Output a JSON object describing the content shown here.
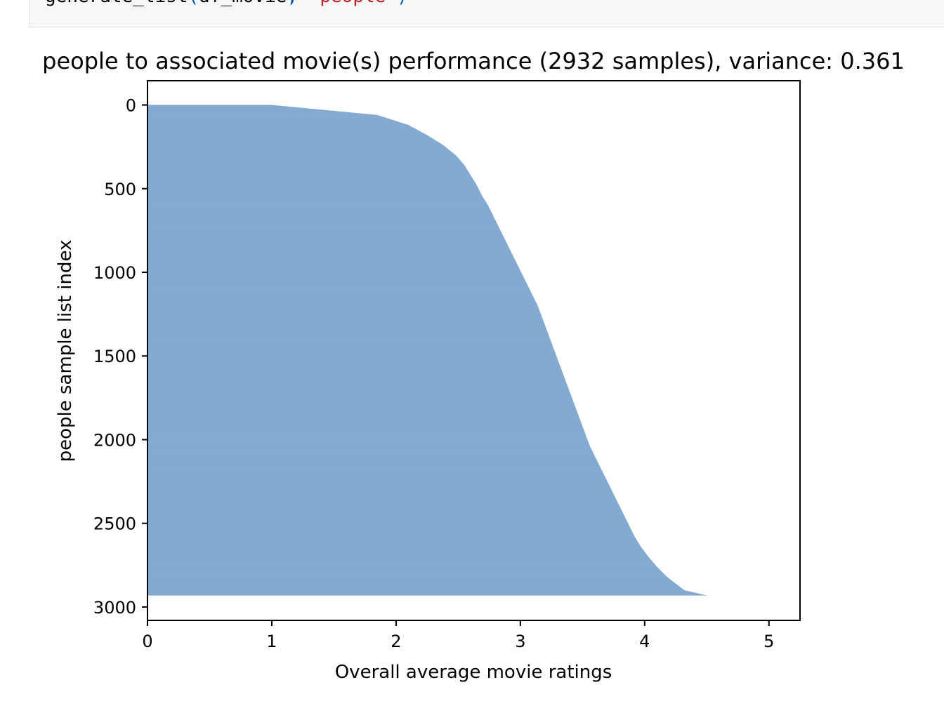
{
  "notebook": {
    "code_cell": {
      "function": "generate_list",
      "open_paren": "(",
      "arg1": "df_movie",
      "comma": ", ",
      "arg2": "\"people\"",
      "close_paren": ")"
    }
  },
  "chart_data": {
    "type": "bar",
    "orientation": "horizontal",
    "title": "people to associated movie(s) performance (2932 samples), variance: 0.361",
    "xlabel": "Overall average movie ratings",
    "ylabel": "people sample list index",
    "xlim": [
      0,
      5.25
    ],
    "ylim": [
      3080,
      -145
    ],
    "xticks": [
      0,
      1,
      2,
      3,
      4,
      5
    ],
    "yticks": [
      0,
      500,
      1000,
      1500,
      2000,
      2500,
      3000
    ],
    "bar_color": "#3a78b5",
    "grid": false,
    "n_samples": 2932,
    "series": [
      {
        "sorted_by": "index",
        "index": [
          0,
          60,
          120,
          180,
          240,
          300,
          360,
          420,
          480,
          540,
          600,
          660,
          720,
          780,
          840,
          900,
          960,
          1020,
          1080,
          1140,
          1200,
          1260,
          1320,
          1380,
          1440,
          1500,
          1560,
          1620,
          1680,
          1740,
          1800,
          1860,
          1920,
          1980,
          2040,
          2100,
          2160,
          2220,
          2280,
          2340,
          2400,
          2460,
          2520,
          2580,
          2640,
          2700,
          2760,
          2820,
          2860,
          2900,
          2931
        ],
        "values": [
          1.0,
          1.85,
          2.1,
          2.25,
          2.38,
          2.48,
          2.55,
          2.6,
          2.65,
          2.69,
          2.74,
          2.78,
          2.82,
          2.86,
          2.9,
          2.94,
          2.98,
          3.02,
          3.06,
          3.1,
          3.14,
          3.17,
          3.2,
          3.23,
          3.26,
          3.29,
          3.32,
          3.35,
          3.38,
          3.41,
          3.44,
          3.47,
          3.5,
          3.53,
          3.56,
          3.6,
          3.64,
          3.68,
          3.72,
          3.76,
          3.8,
          3.84,
          3.88,
          3.92,
          3.97,
          4.03,
          4.1,
          4.18,
          4.25,
          4.32,
          4.5
        ]
      }
    ]
  }
}
